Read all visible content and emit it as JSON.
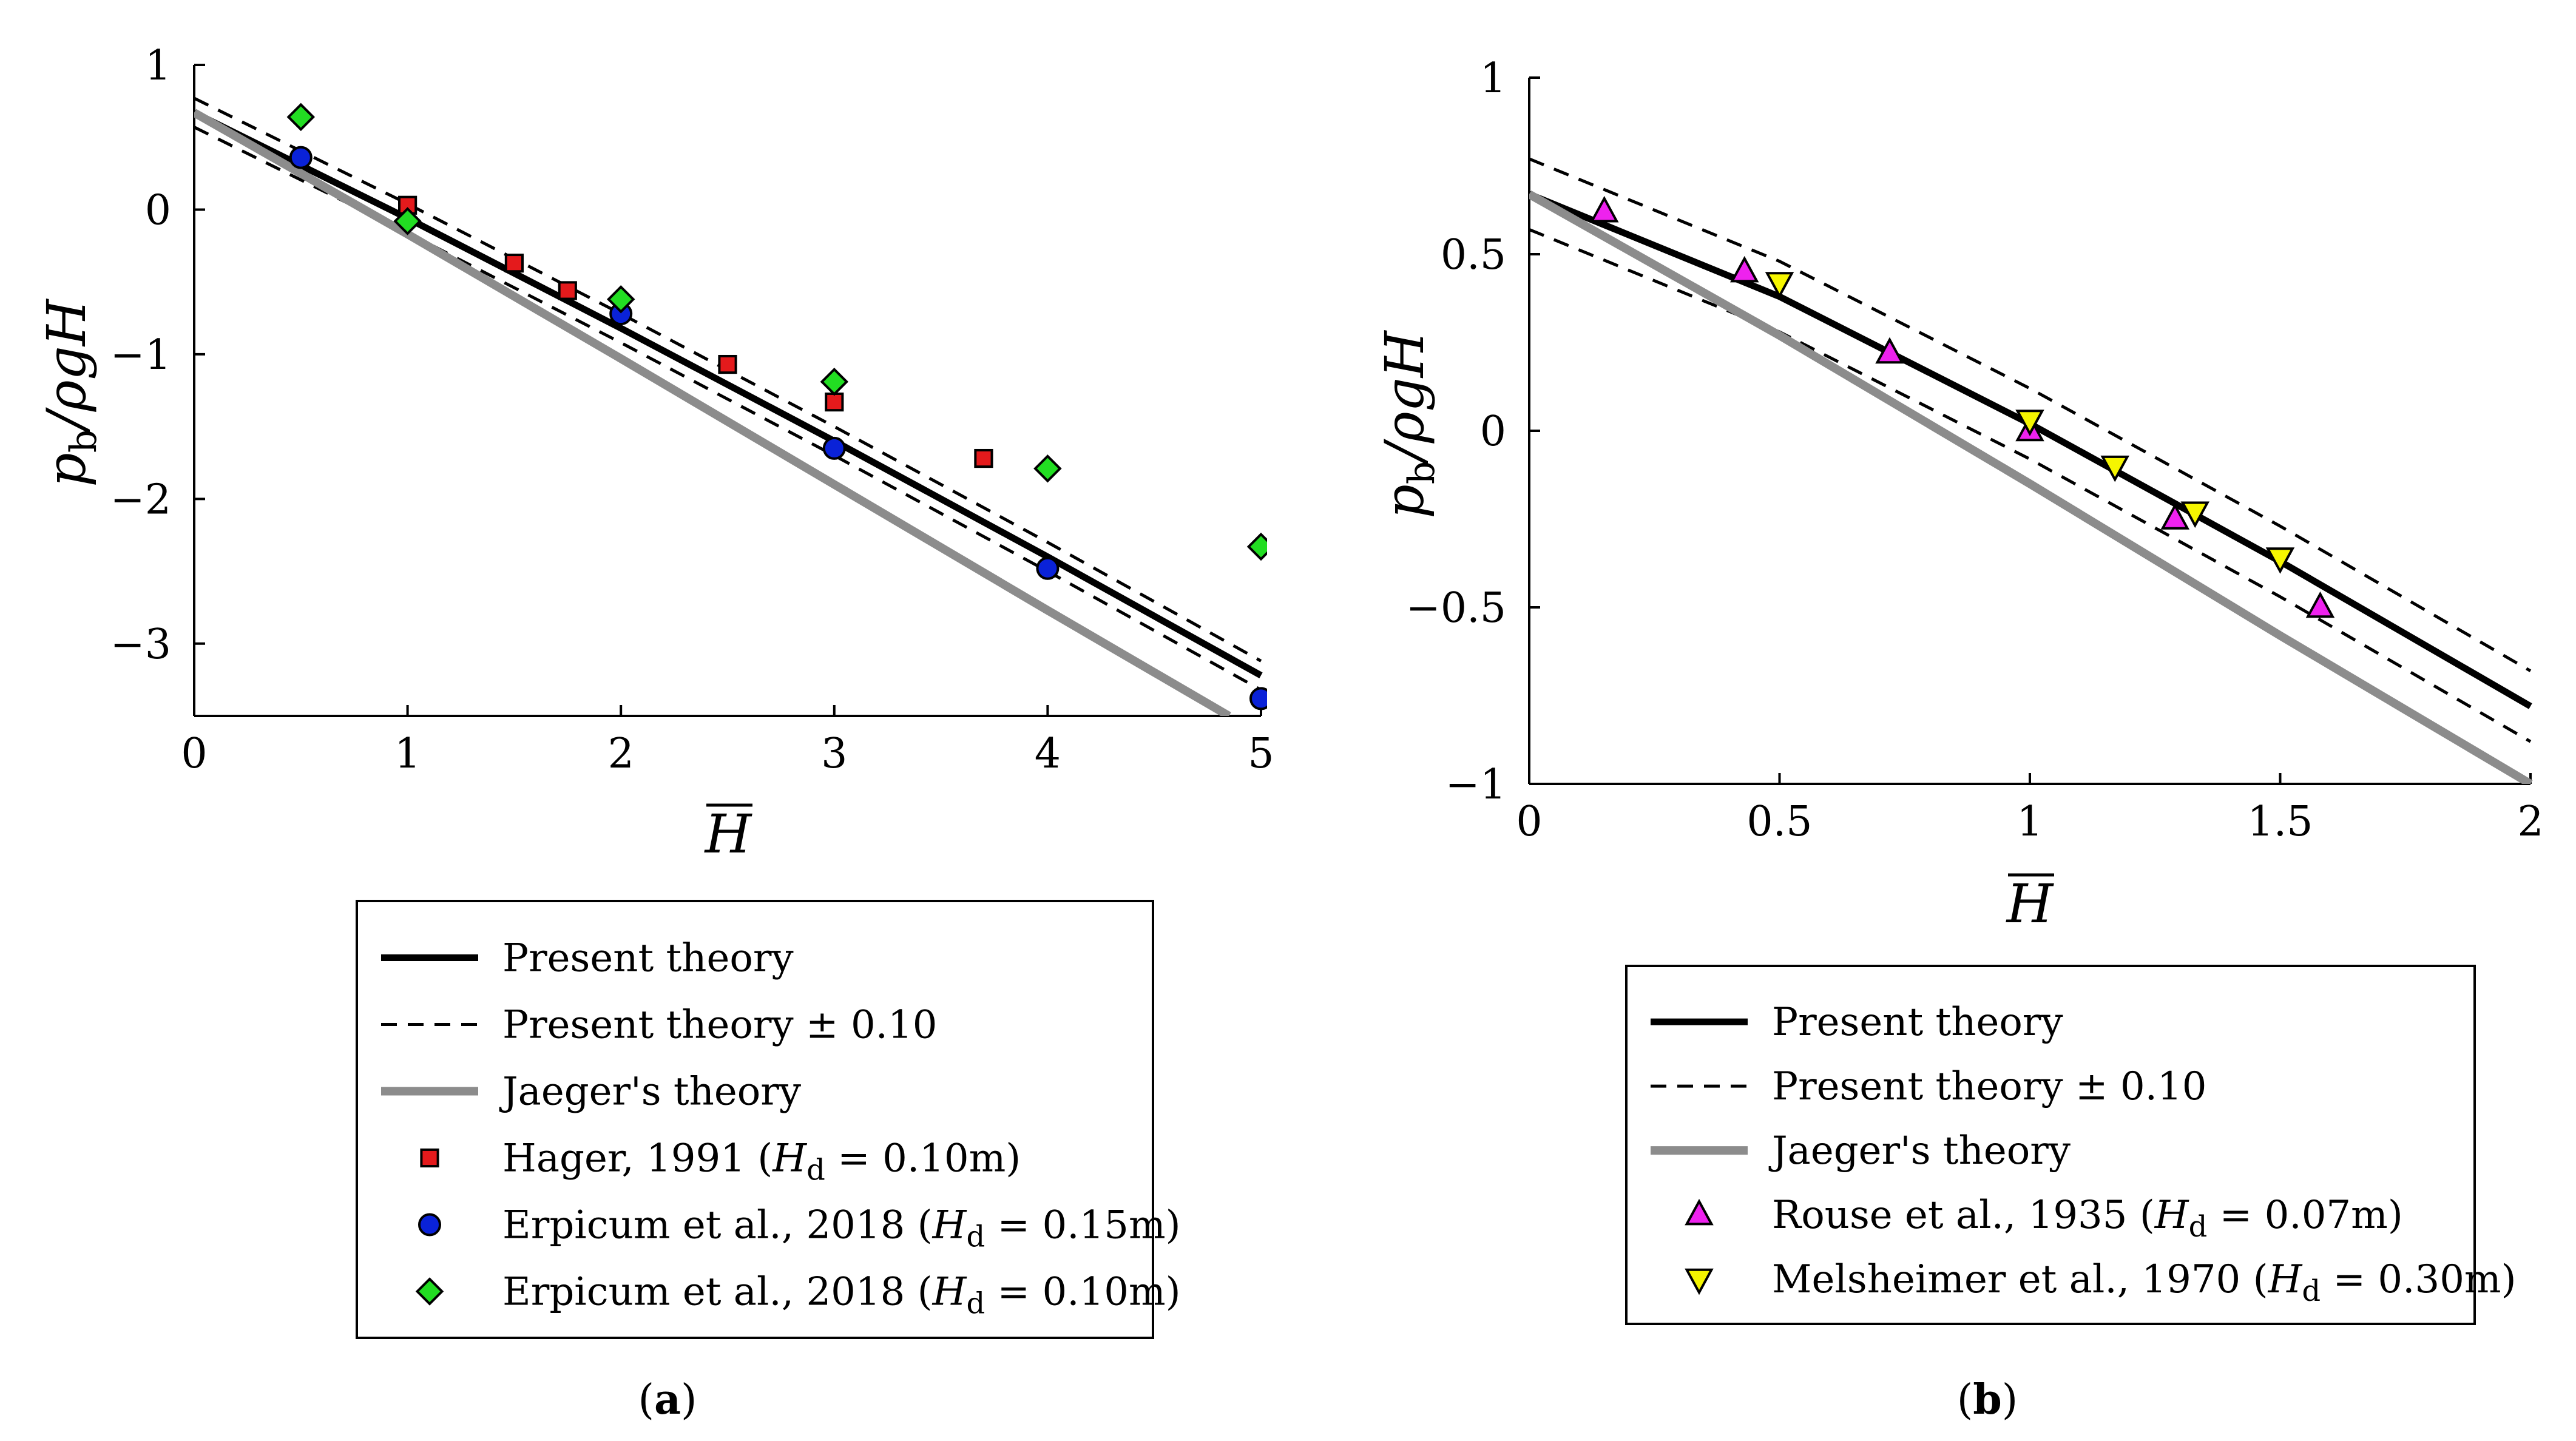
{
  "chart_data": [
    {
      "id": "a",
      "type": "line",
      "caption_label": "a",
      "xlabel": "H",
      "ylabel_main": "p",
      "ylabel_sub": "b",
      "ylabel_rest": "/ρgH",
      "xlim": [
        0,
        5
      ],
      "ylim": [
        -3.5,
        1
      ],
      "xticks": [
        0,
        1,
        2,
        3,
        4,
        5
      ],
      "xtick_labels": [
        "0",
        "1",
        "2",
        "3",
        "4",
        "5"
      ],
      "yticks": [
        1,
        0,
        -1,
        -2,
        -3
      ],
      "ytick_labels": [
        "1",
        "0",
        "−1",
        "−2",
        "−3"
      ],
      "grid": false,
      "series": [
        {
          "name": "Present theory",
          "kind": "line",
          "style": "solid",
          "color": "#000000",
          "x": [
            0,
            1,
            2,
            3,
            4,
            5
          ],
          "y": [
            0.67,
            -0.06,
            -0.82,
            -1.6,
            -2.4,
            -3.22
          ]
        },
        {
          "name": "Present theory ± 0.10",
          "kind": "line",
          "style": "dashed",
          "color": "#000000",
          "x": [
            0,
            1,
            2,
            3,
            4,
            5
          ],
          "y": [
            0.77,
            0.04,
            -0.72,
            -1.5,
            -2.3,
            -3.12
          ]
        },
        {
          "name": "",
          "kind": "line",
          "style": "dashed",
          "color": "#000000",
          "legend": false,
          "x": [
            0,
            1,
            2,
            3,
            4,
            5
          ],
          "y": [
            0.57,
            -0.16,
            -0.92,
            -1.7,
            -2.5,
            -3.32
          ]
        },
        {
          "name": "Jaeger's theory",
          "kind": "line",
          "style": "solid",
          "color": "#8c8c8c",
          "x": [
            0,
            1,
            2,
            3,
            4,
            4.85
          ],
          "y": [
            0.67,
            -0.17,
            -1.03,
            -1.9,
            -2.77,
            -3.5
          ]
        },
        {
          "name": "Hager, 1991 (",
          "name_sym": "H",
          "name_sub": "d",
          "name_tail": " = 0.10m)",
          "kind": "marker",
          "marker": "square",
          "color": "#e41a1c",
          "x": [
            1,
            1.5,
            1.75,
            2.5,
            3,
            3.7
          ],
          "y": [
            0.03,
            -0.37,
            -0.56,
            -1.07,
            -1.33,
            -1.72
          ]
        },
        {
          "name": "Erpicum et al., 2018 (",
          "name_sym": "H",
          "name_sub": "d",
          "name_tail": " = 0.15m)",
          "kind": "marker",
          "marker": "circle",
          "color": "#0a22d8",
          "x": [
            0.5,
            2,
            3,
            4,
            5
          ],
          "y": [
            0.36,
            -0.72,
            -1.65,
            -2.48,
            -3.38
          ]
        },
        {
          "name": "Erpicum et al., 2018 (",
          "name_sym": "H",
          "name_sub": "d",
          "name_tail": " = 0.10m)",
          "kind": "marker",
          "marker": "diamond",
          "color": "#22dd22",
          "x": [
            0.5,
            1,
            2,
            3,
            4,
            5
          ],
          "y": [
            0.64,
            -0.08,
            -0.62,
            -1.19,
            -1.79,
            -2.33
          ]
        }
      ]
    },
    {
      "id": "b",
      "type": "line",
      "caption_label": "b",
      "xlabel": "H",
      "ylabel_main": "p",
      "ylabel_sub": "b",
      "ylabel_rest": "/ρgH",
      "xlim": [
        0,
        2
      ],
      "ylim": [
        -1,
        1
      ],
      "xticks": [
        0,
        0.5,
        1,
        1.5,
        2
      ],
      "xtick_labels": [
        "0",
        "0.5",
        "1",
        "1.5",
        "2"
      ],
      "yticks": [
        1,
        0.5,
        0,
        -0.5,
        -1
      ],
      "ytick_labels": [
        "1",
        "0.5",
        "0",
        "−0.5",
        "−1"
      ],
      "grid": false,
      "series": [
        {
          "name": "Present theory",
          "kind": "line",
          "style": "solid",
          "color": "#000000",
          "x": [
            0,
            0.5,
            1,
            1.5,
            2
          ],
          "y": [
            0.67,
            0.38,
            0.02,
            -0.37,
            -0.78
          ]
        },
        {
          "name": "Present theory ± 0.10",
          "kind": "line",
          "style": "dashed",
          "color": "#000000",
          "x": [
            0,
            0.5,
            1,
            1.5,
            2
          ],
          "y": [
            0.77,
            0.48,
            0.12,
            -0.27,
            -0.68
          ]
        },
        {
          "name": "",
          "kind": "line",
          "style": "dashed",
          "color": "#000000",
          "legend": false,
          "x": [
            0,
            0.5,
            1,
            1.5,
            2
          ],
          "y": [
            0.57,
            0.28,
            -0.08,
            -0.47,
            -0.88
          ]
        },
        {
          "name": "Jaeger's theory",
          "kind": "line",
          "style": "solid",
          "color": "#8c8c8c",
          "x": [
            0,
            0.5,
            1,
            1.5,
            2
          ],
          "y": [
            0.67,
            0.27,
            -0.15,
            -0.58,
            -1.0
          ]
        },
        {
          "name": "Rouse et al., 1935 (",
          "name_sym": "H",
          "name_sub": "d",
          "name_tail": " = 0.07m)",
          "kind": "marker",
          "marker": "triangle-up",
          "color": "#ee22ee",
          "x": [
            0.15,
            0.43,
            0.72,
            1.0,
            1.29,
            1.58
          ],
          "y": [
            0.62,
            0.45,
            0.22,
            0.0,
            -0.25,
            -0.5
          ]
        },
        {
          "name": "Melsheimer et al., 1970 (",
          "name_sym": "H",
          "name_sub": "d",
          "name_tail": " = 0.30m)",
          "kind": "marker",
          "marker": "triangle-down",
          "color": "#f5f500",
          "x": [
            0.5,
            1.0,
            1.17,
            1.33,
            1.5
          ],
          "y": [
            0.42,
            0.03,
            -0.1,
            -0.23,
            -0.36
          ]
        }
      ]
    }
  ]
}
